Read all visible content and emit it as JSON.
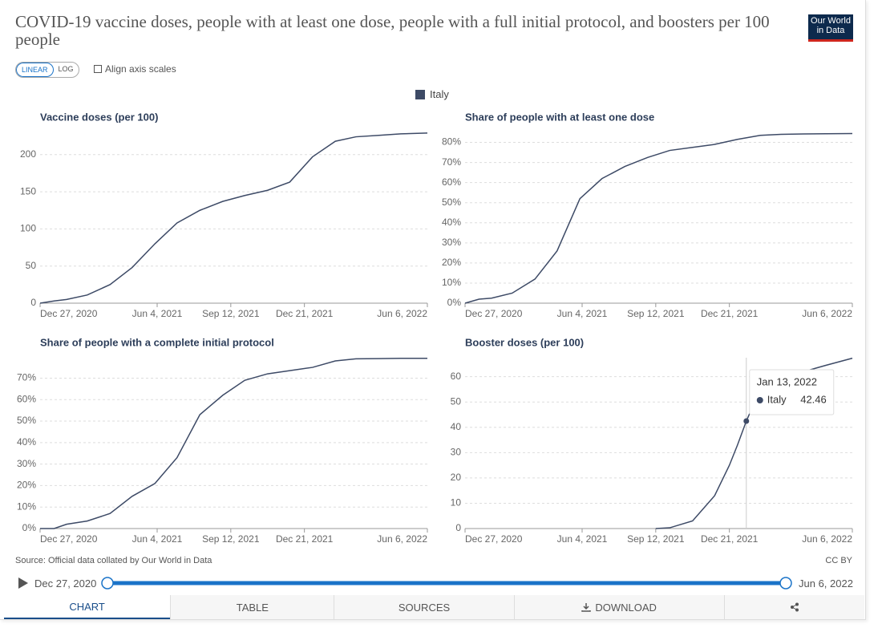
{
  "header": {
    "title": "COVID-19 vaccine doses, people with at least one dose, people with a full initial protocol, and boosters per 100 people",
    "logo": [
      "Our World",
      "in Data"
    ]
  },
  "controls": {
    "linear": "LINEAR",
    "log": "LOG",
    "align": "Align axis scales"
  },
  "chart_data": [
    {
      "type": "line",
      "title": "Vaccine doses (per 100)",
      "x": [
        "2020-12-27",
        "2021-01-15",
        "2021-02-01",
        "2021-03-01",
        "2021-04-01",
        "2021-05-01",
        "2021-06-01",
        "2021-07-01",
        "2021-08-01",
        "2021-09-01",
        "2021-10-01",
        "2021-11-01",
        "2021-12-01",
        "2022-01-01",
        "2022-02-01",
        "2022-03-01",
        "2022-04-01",
        "2022-05-01",
        "2022-06-06"
      ],
      "series": [
        {
          "name": "Italy",
          "color": "#3d4a66",
          "values": [
            0,
            3,
            5,
            11,
            25,
            48,
            80,
            108,
            125,
            137,
            145,
            152,
            163,
            197,
            218,
            224,
            226,
            228,
            229
          ]
        }
      ],
      "xlim": [
        "2020-12-27",
        "2022-06-06"
      ],
      "xticks": [
        {
          "value": "2020-12-27",
          "label": "Dec 27, 2020"
        },
        {
          "value": "2021-06-04",
          "label": "Jun 4, 2021"
        },
        {
          "value": "2021-09-12",
          "label": "Sep 12, 2021"
        },
        {
          "value": "2021-12-21",
          "label": "Dec 21, 2021"
        },
        {
          "value": "2022-06-06",
          "label": "Jun 6, 2022"
        }
      ],
      "ylim": [
        0,
        230
      ],
      "yticks": [
        0,
        50,
        100,
        150,
        200
      ],
      "grid": true
    },
    {
      "type": "line",
      "title": "Share of people with at least one dose",
      "x": [
        "2020-12-27",
        "2021-01-15",
        "2021-02-01",
        "2021-03-01",
        "2021-04-01",
        "2021-05-01",
        "2021-06-01",
        "2021-07-01",
        "2021-08-01",
        "2021-09-01",
        "2021-10-01",
        "2021-11-01",
        "2021-12-01",
        "2022-01-01",
        "2022-02-01",
        "2022-03-01",
        "2022-04-01",
        "2022-05-01",
        "2022-06-06"
      ],
      "series": [
        {
          "name": "Italy",
          "color": "#3d4a66",
          "values": [
            0,
            2,
            2.5,
            5,
            12,
            26,
            52,
            62,
            68,
            72.5,
            76,
            77.5,
            79,
            81.5,
            83.5,
            84,
            84.2,
            84.3,
            84.4
          ]
        }
      ],
      "xlim": [
        "2020-12-27",
        "2022-06-06"
      ],
      "xticks": [
        {
          "value": "2020-12-27",
          "label": "Dec 27, 2020"
        },
        {
          "value": "2021-06-04",
          "label": "Jun 4, 2021"
        },
        {
          "value": "2021-09-12",
          "label": "Sep 12, 2021"
        },
        {
          "value": "2021-12-21",
          "label": "Dec 21, 2021"
        },
        {
          "value": "2022-06-06",
          "label": "Jun 6, 2022"
        }
      ],
      "ylim": [
        0,
        85
      ],
      "yticks": [
        {
          "value": 0,
          "label": "0%"
        },
        {
          "value": 10,
          "label": "10%"
        },
        {
          "value": 20,
          "label": "20%"
        },
        {
          "value": 30,
          "label": "30%"
        },
        {
          "value": 40,
          "label": "40%"
        },
        {
          "value": 50,
          "label": "50%"
        },
        {
          "value": 60,
          "label": "60%"
        },
        {
          "value": 70,
          "label": "70%"
        },
        {
          "value": 80,
          "label": "80%"
        }
      ],
      "grid": true
    },
    {
      "type": "line",
      "title": "Share of people with a complete initial protocol",
      "x": [
        "2020-12-27",
        "2021-01-15",
        "2021-02-01",
        "2021-03-01",
        "2021-04-01",
        "2021-05-01",
        "2021-06-01",
        "2021-07-01",
        "2021-08-01",
        "2021-09-01",
        "2021-10-01",
        "2021-11-01",
        "2021-12-01",
        "2022-01-01",
        "2022-02-01",
        "2022-03-01",
        "2022-04-01",
        "2022-05-01",
        "2022-06-06"
      ],
      "series": [
        {
          "name": "Italy",
          "color": "#3d4a66",
          "values": [
            0,
            0,
            2,
            3.5,
            7,
            15,
            21,
            33,
            53,
            62,
            69,
            72,
            73.5,
            75,
            78,
            79,
            79.1,
            79.2,
            79.2
          ]
        }
      ],
      "xlim": [
        "2020-12-27",
        "2022-06-06"
      ],
      "xticks": [
        {
          "value": "2020-12-27",
          "label": "Dec 27, 2020"
        },
        {
          "value": "2021-06-04",
          "label": "Jun 4, 2021"
        },
        {
          "value": "2021-09-12",
          "label": "Sep 12, 2021"
        },
        {
          "value": "2021-12-21",
          "label": "Dec 21, 2021"
        },
        {
          "value": "2022-06-06",
          "label": "Jun 6, 2022"
        }
      ],
      "ylim": [
        0,
        79.5
      ],
      "yticks": [
        {
          "value": 0,
          "label": "0%"
        },
        {
          "value": 10,
          "label": "10%"
        },
        {
          "value": 20,
          "label": "20%"
        },
        {
          "value": 30,
          "label": "30%"
        },
        {
          "value": 40,
          "label": "40%"
        },
        {
          "value": 50,
          "label": "50%"
        },
        {
          "value": 60,
          "label": "60%"
        },
        {
          "value": 70,
          "label": "70%"
        }
      ],
      "grid": true
    },
    {
      "type": "line",
      "title": "Booster doses (per 100)",
      "x": [
        "2021-09-12",
        "2021-10-01",
        "2021-11-01",
        "2021-12-01",
        "2021-12-21",
        "2022-01-01",
        "2022-01-13",
        "2022-02-01",
        "2022-03-01",
        "2022-04-01",
        "2022-05-01",
        "2022-06-06"
      ],
      "series": [
        {
          "name": "Italy",
          "color": "#3d4a66",
          "values": [
            0,
            0.3,
            3,
            13,
            25,
            33,
            42.46,
            55,
            60,
            62,
            64.5,
            67.3
          ]
        }
      ],
      "xlim": [
        "2020-12-27",
        "2022-06-06"
      ],
      "xticks": [
        {
          "value": "2020-12-27",
          "label": "Dec 27, 2020"
        },
        {
          "value": "2021-06-04",
          "label": "Jun 4, 2021"
        },
        {
          "value": "2021-09-12",
          "label": "Sep 12, 2021"
        },
        {
          "value": "2021-12-21",
          "label": "Dec 21, 2021"
        },
        {
          "value": "2022-06-06",
          "label": "Jun 6, 2022"
        }
      ],
      "ylim": [
        0,
        67.5
      ],
      "yticks": [
        0,
        10,
        20,
        30,
        40,
        50,
        60
      ],
      "grid": true,
      "tooltip": {
        "x": {
          "value": "2022-01-13",
          "label": "Jan 13, 2022"
        },
        "value": 42.46
      }
    }
  ],
  "footer": {
    "source": "Source: Official data collated by Our World in Data",
    "license": "CC BY"
  },
  "timeline": {
    "start": "Dec 27, 2020",
    "end": "Jun 6, 2022"
  },
  "tabs": [
    "CHART",
    "TABLE",
    "SOURCES",
    "DOWNLOAD"
  ]
}
